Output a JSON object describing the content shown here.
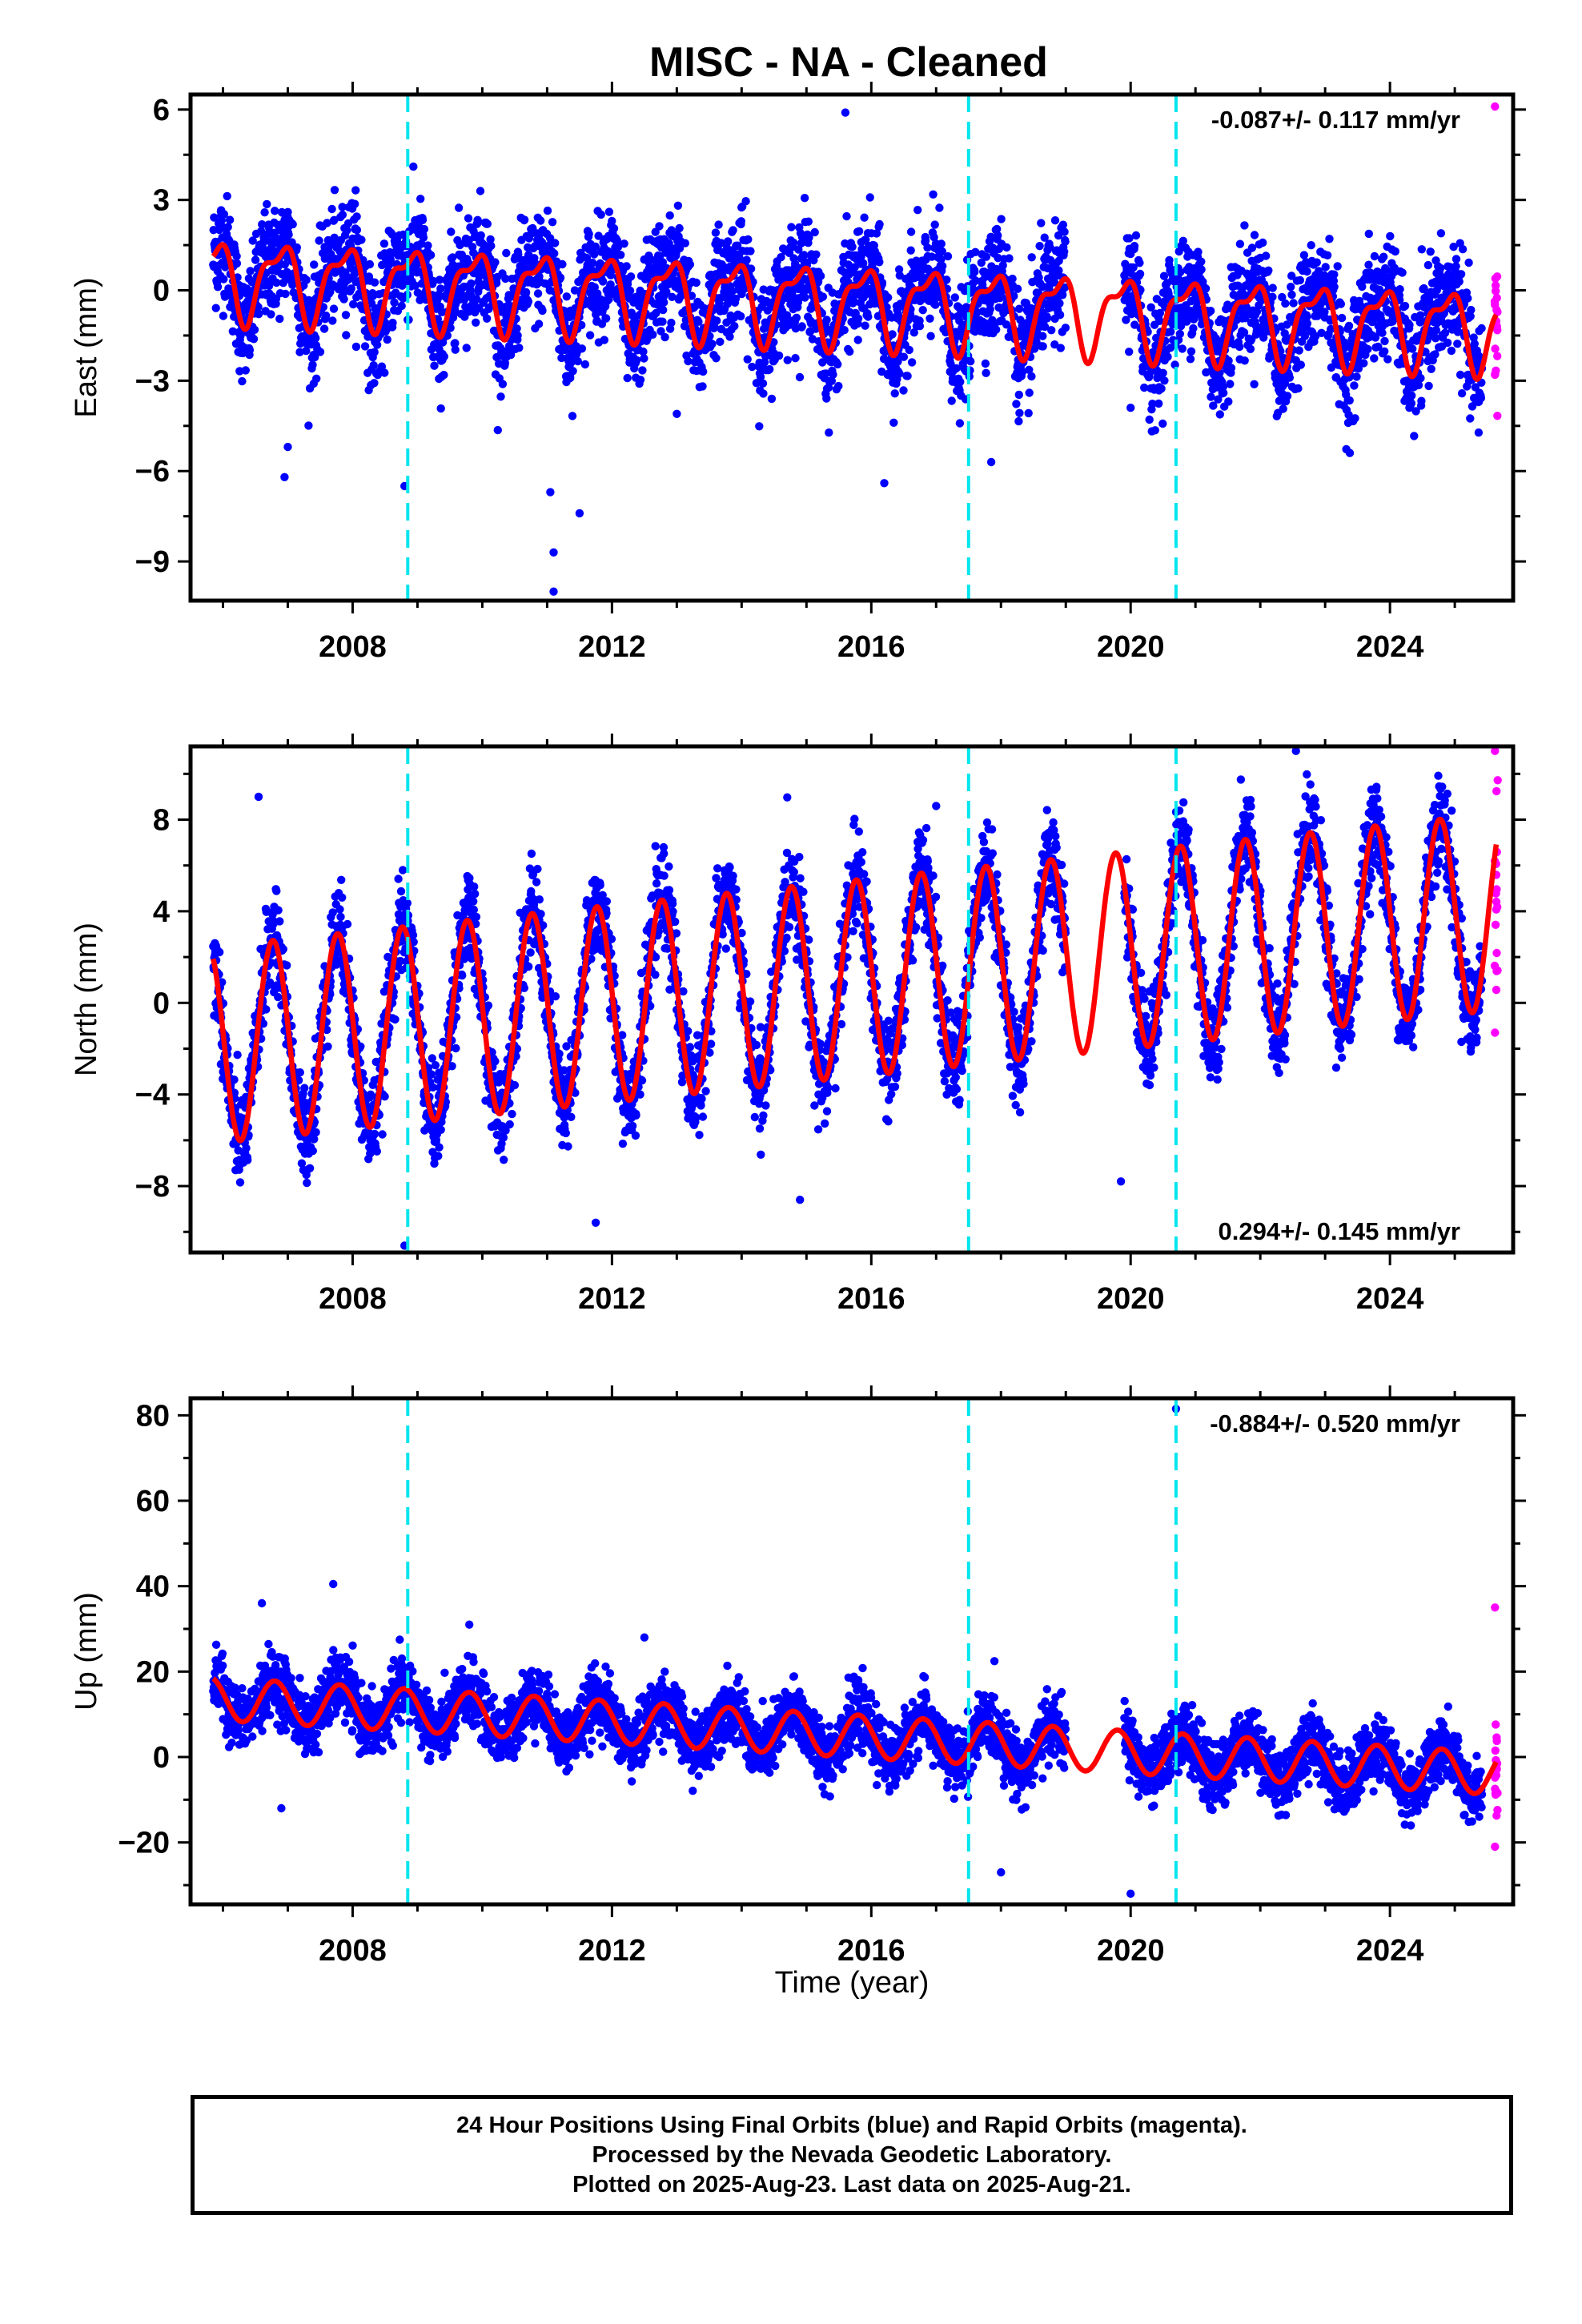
{
  "colors": {
    "final_points": "#0000ff",
    "rapid_points": "#ff00ff",
    "model": "#ff0000",
    "equipment_change": "#00e5ee",
    "axes": "#000000"
  },
  "footer": {
    "line1": "24 Hour Positions Using Final Orbits (blue) and Rapid Orbits (magenta).",
    "line2": "Processed by the Nevada Geodetic Laboratory.",
    "line3": "Plotted on 2025-Aug-23. Last data on 2025-Aug-21."
  },
  "chart_data": {
    "type": "scatter",
    "title": "MISC  - NA - Cleaned",
    "xlabel": "Time (year)",
    "xlim": [
      2005.5,
      2025.9
    ],
    "x_ticks": [
      2008,
      2012,
      2016,
      2020,
      2024
    ],
    "data_start": 2005.85,
    "final_end": 2025.42,
    "rapid_start": 2025.45,
    "rapid_end": 2025.64,
    "gap": [
      2019.0,
      2019.9
    ],
    "equipment_changes": [
      2008.85,
      2017.5,
      2020.7
    ],
    "panels": [
      {
        "name": "East",
        "ylabel": "East (mm)",
        "ylim": [
          -10.3,
          6.5
        ],
        "y_ticks": [
          6,
          3,
          0,
          -3,
          -6,
          -9
        ],
        "y_tick_labels": [
          "6",
          "3",
          "0",
          "−3",
          "−6",
          "−9"
        ],
        "rate": "-0.087+/- 0.117 mm/yr",
        "rate_position": "top-right",
        "model": {
          "offset": 0.4,
          "trend": -0.087,
          "annual_amp": 1.2,
          "annual_phase": 0.62,
          "semiannual_amp": 0.5,
          "semiannual_phase": 0.45,
          "scatter": 0.9
        },
        "outliers": [
          [
            2006.95,
            -6.2
          ],
          [
            2007.0,
            -5.2
          ],
          [
            2008.8,
            -6.5
          ],
          [
            2011.1,
            -8.7
          ],
          [
            2011.1,
            -10.0
          ],
          [
            2011.05,
            -6.7
          ],
          [
            2011.5,
            -7.4
          ],
          [
            2013.0,
            -4.1
          ],
          [
            2016.2,
            -6.4
          ],
          [
            2017.85,
            -5.7
          ],
          [
            2020.0,
            -3.9
          ],
          [
            2015.6,
            5.9
          ],
          [
            2024.3,
            -3.9
          ],
          [
            2025.62,
            6.1
          ],
          [
            2025.62,
            -2.8
          ]
        ]
      },
      {
        "name": "North",
        "ylabel": "North (mm)",
        "ylim": [
          -10.9,
          11.2
        ],
        "y_ticks": [
          8,
          4,
          0,
          -4,
          -8
        ],
        "y_tick_labels": [
          "8",
          "4",
          "0",
          "−4",
          "−8"
        ],
        "rate": "0.294+/- 0.145 mm/yr",
        "rate_position": "bottom-right",
        "model": {
          "offset": -1.8,
          "trend": 0.294,
          "annual_amp": 4.3,
          "annual_phase": 0.52,
          "semiannual_amp": 0.0,
          "semiannual_phase": 0.0,
          "scatter": 1.0
        },
        "outliers": [
          [
            2006.55,
            9.0
          ],
          [
            2008.8,
            -10.6
          ],
          [
            2014.9,
            -8.6
          ],
          [
            2019.85,
            -7.8
          ],
          [
            2017.0,
            8.6
          ],
          [
            2022.55,
            11.0
          ],
          [
            2025.62,
            11.0
          ],
          [
            2025.62,
            -1.3
          ],
          [
            2011.75,
            -9.6
          ]
        ]
      },
      {
        "name": "Up",
        "ylabel": "Up (mm)",
        "ylim": [
          -34.5,
          84.0
        ],
        "y_ticks": [
          80,
          60,
          40,
          20,
          0,
          -20
        ],
        "y_tick_labels": [
          "80",
          "60",
          "40",
          "20",
          "0",
          "−20"
        ],
        "rate": "-0.884+/- 0.520 mm/yr",
        "rate_position": "top-right",
        "model": {
          "offset": 13.5,
          "trend": -0.884,
          "annual_amp": 5.0,
          "annual_phase": 0.55,
          "semiannual_amp": 0.0,
          "semiannual_phase": 0.0,
          "scatter": 3.6
        },
        "outliers": [
          [
            2007.7,
            40.5
          ],
          [
            2006.6,
            36.0
          ],
          [
            2006.9,
            -12.0
          ],
          [
            2009.8,
            31.0
          ],
          [
            2012.5,
            28.0
          ],
          [
            2018.0,
            -27.0
          ],
          [
            2020.0,
            -32.0
          ],
          [
            2020.7,
            81.5
          ],
          [
            2025.62,
            35.0
          ],
          [
            2025.62,
            -21.0
          ]
        ]
      }
    ]
  }
}
